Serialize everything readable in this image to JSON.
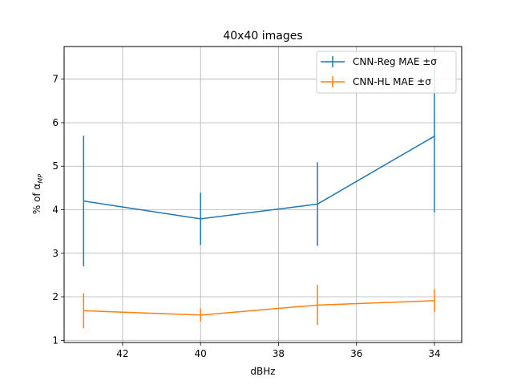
{
  "chart_data": {
    "type": "line",
    "title": "40x40 images",
    "xlabel": "dBHz",
    "ylabel_main": "% of α",
    "ylabel_sub": "MP",
    "x": [
      43,
      40,
      37,
      34
    ],
    "xlim": [
      43.5,
      33.3
    ],
    "ylim": [
      0.95,
      7.75
    ],
    "xticks": [
      42,
      40,
      38,
      36,
      34
    ],
    "yticks": [
      1,
      2,
      3,
      4,
      5,
      6,
      7
    ],
    "xtick_labels": [
      "42",
      "40",
      "38",
      "36",
      "34"
    ],
    "ytick_labels": [
      "1",
      "2",
      "3",
      "4",
      "5",
      "6",
      "7"
    ],
    "grid": true,
    "legend_position": "upper right",
    "series": [
      {
        "name": "CNN-Reg MAE ±σ",
        "color": "#1f77b4",
        "values": [
          4.2,
          3.79,
          4.13,
          5.69
        ],
        "err": [
          1.5,
          0.6,
          0.96,
          1.75
        ]
      },
      {
        "name": "CNN-HL MAE ±σ",
        "color": "#ff7f0e",
        "values": [
          1.68,
          1.58,
          1.81,
          1.91
        ],
        "err": [
          0.4,
          0.15,
          0.46,
          0.26
        ]
      }
    ]
  }
}
